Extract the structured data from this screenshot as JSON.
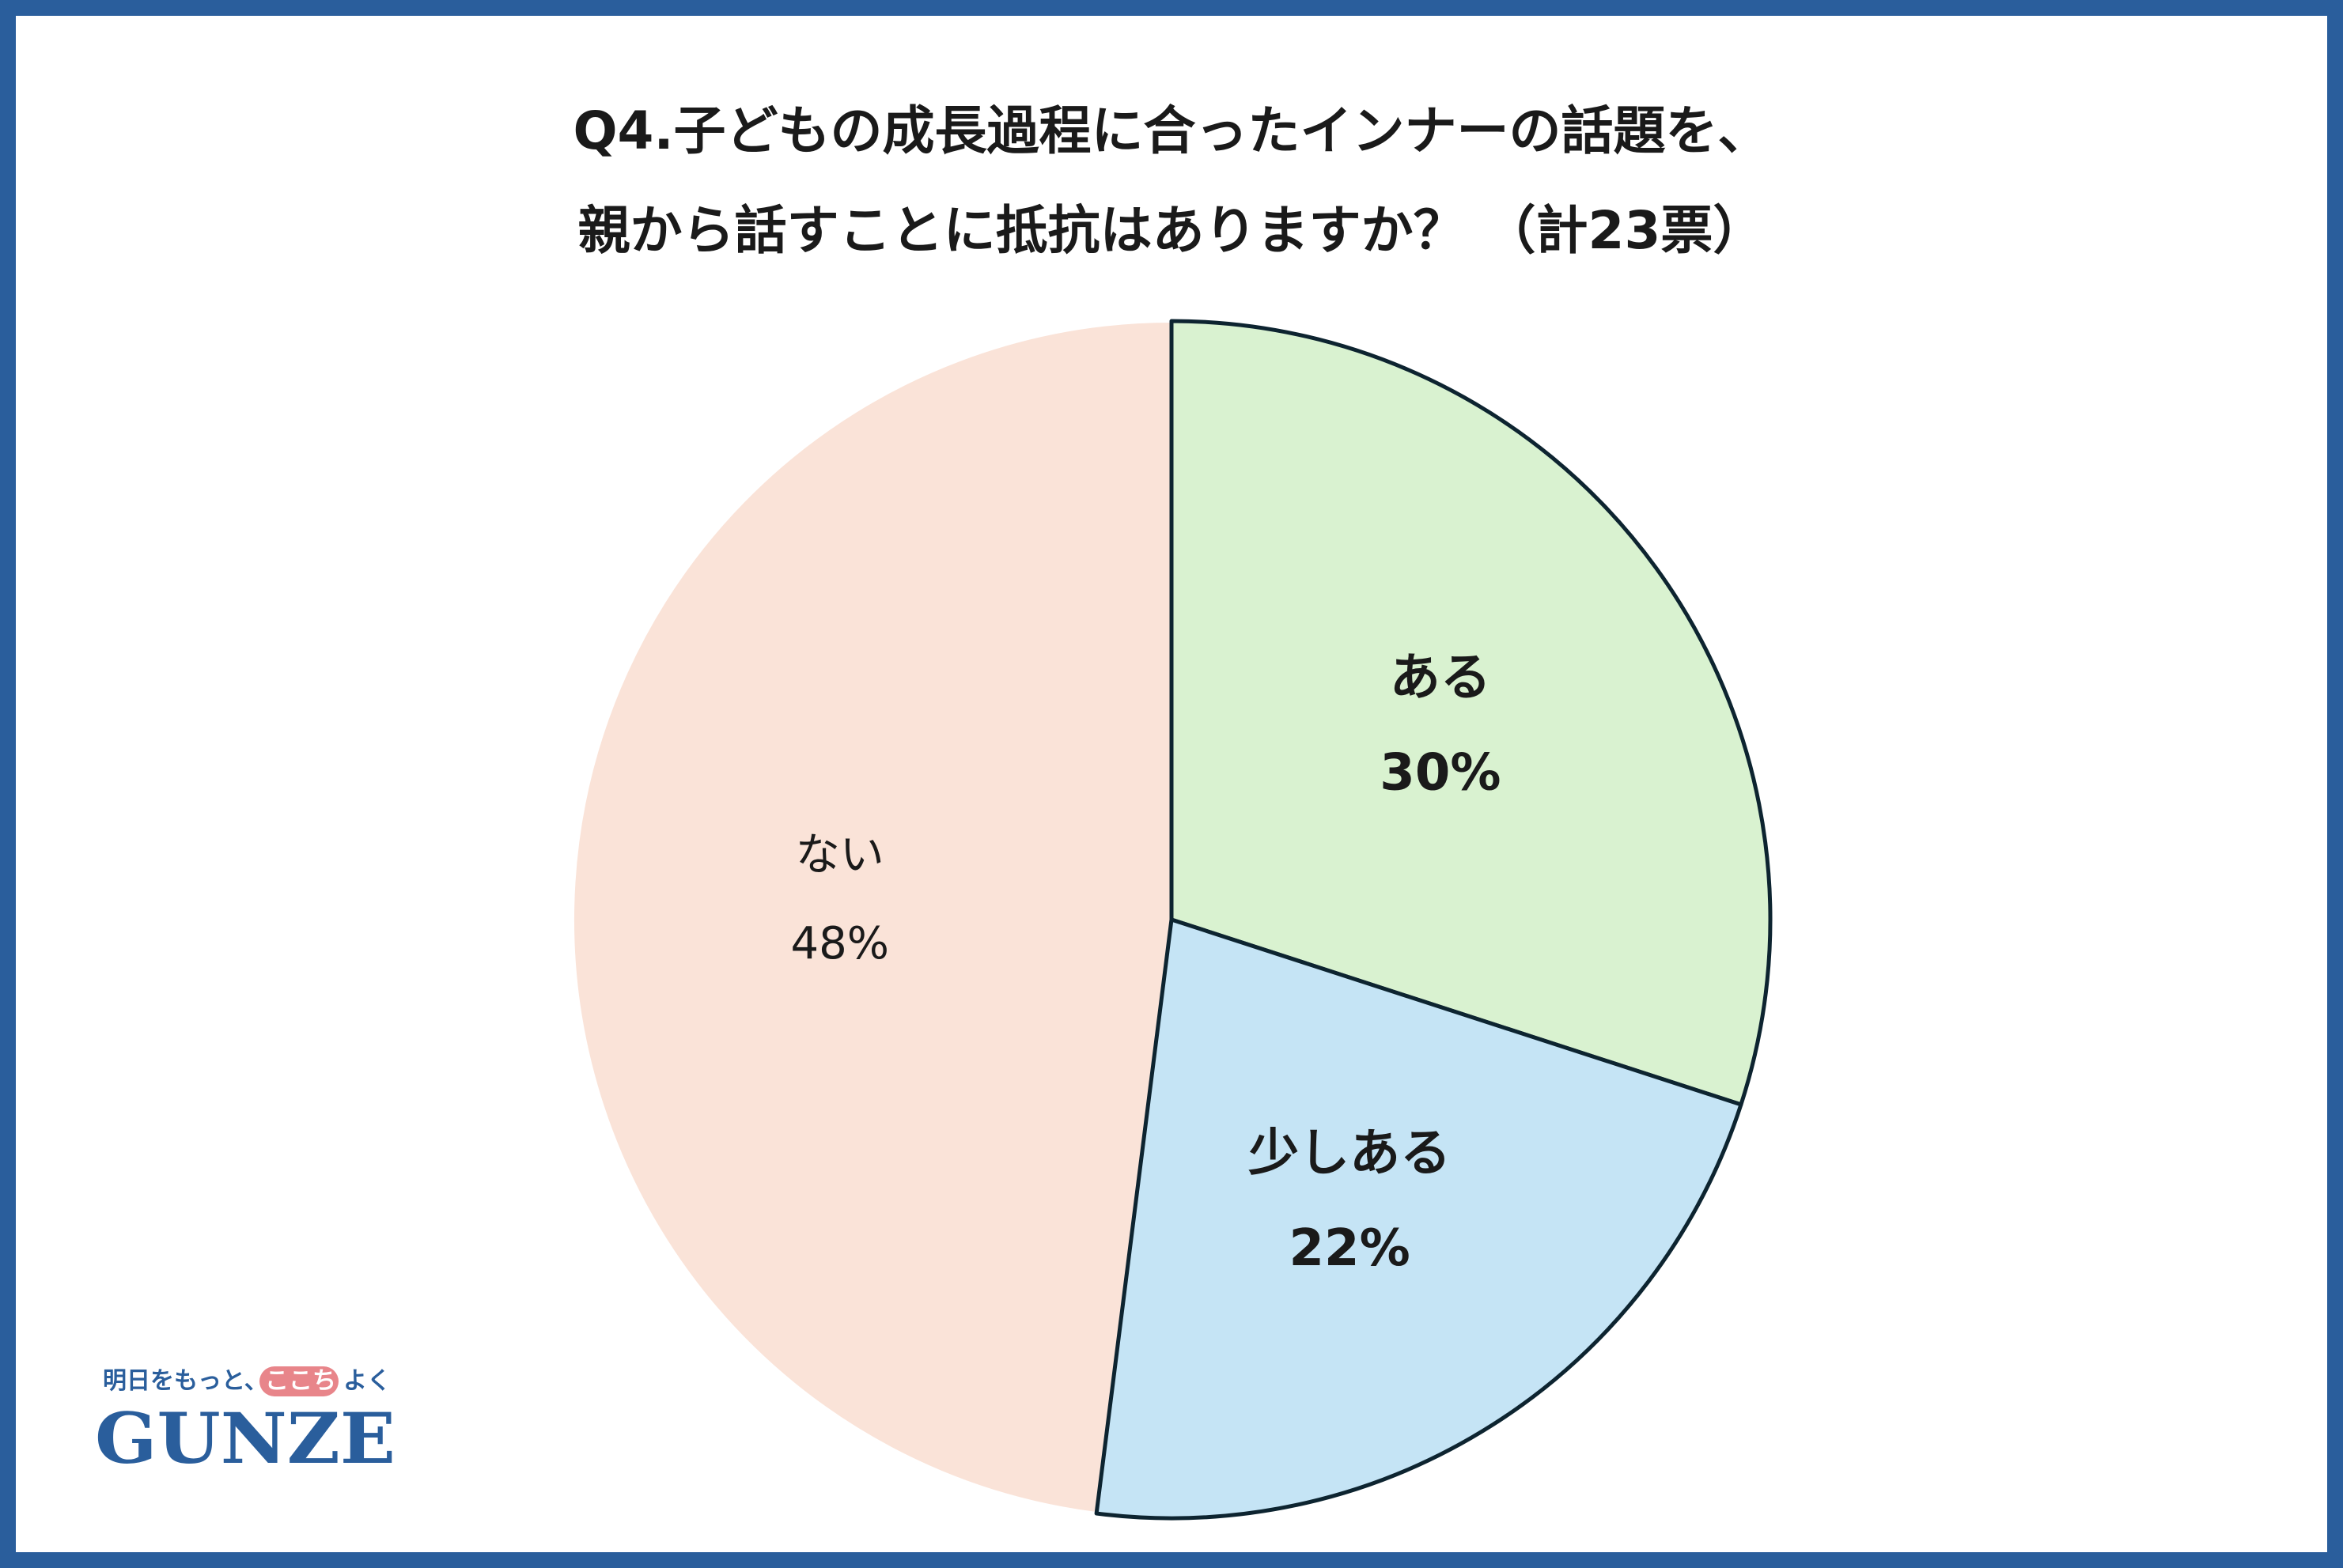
{
  "title": {
    "line1": "Q4.子どもの成長過程に合ったインナーの話題を、",
    "line2": "親から話すことに抵抗はありますか？ （計23票）"
  },
  "chart_data": {
    "type": "pie",
    "slices": [
      {
        "label": "ある",
        "value": 30,
        "value_label": "30%",
        "color": "#d9f2d0",
        "bold": true
      },
      {
        "label": "少しある",
        "value": 22,
        "value_label": "22%",
        "color": "#c5e4f5",
        "bold": true
      },
      {
        "label": "ない",
        "value": 48,
        "value_label": "48%",
        "color": "#fae3d8",
        "bold": false
      }
    ],
    "start": "12 o'clock",
    "direction": "clockwise",
    "highlighted": [
      "ある",
      "少しある"
    ],
    "highlight_stroke": "#0d2430"
  },
  "logo": {
    "tagline_prefix": "明日をもっと、",
    "tagline_highlight": "ここち",
    "tagline_suffix": "よく",
    "wordmark": "GUNZE",
    "brand_color": "#2a5e9c",
    "highlight_color": "#e8858a"
  },
  "colors": {
    "frame": "#2a5e9c",
    "background": "#ffffff"
  }
}
